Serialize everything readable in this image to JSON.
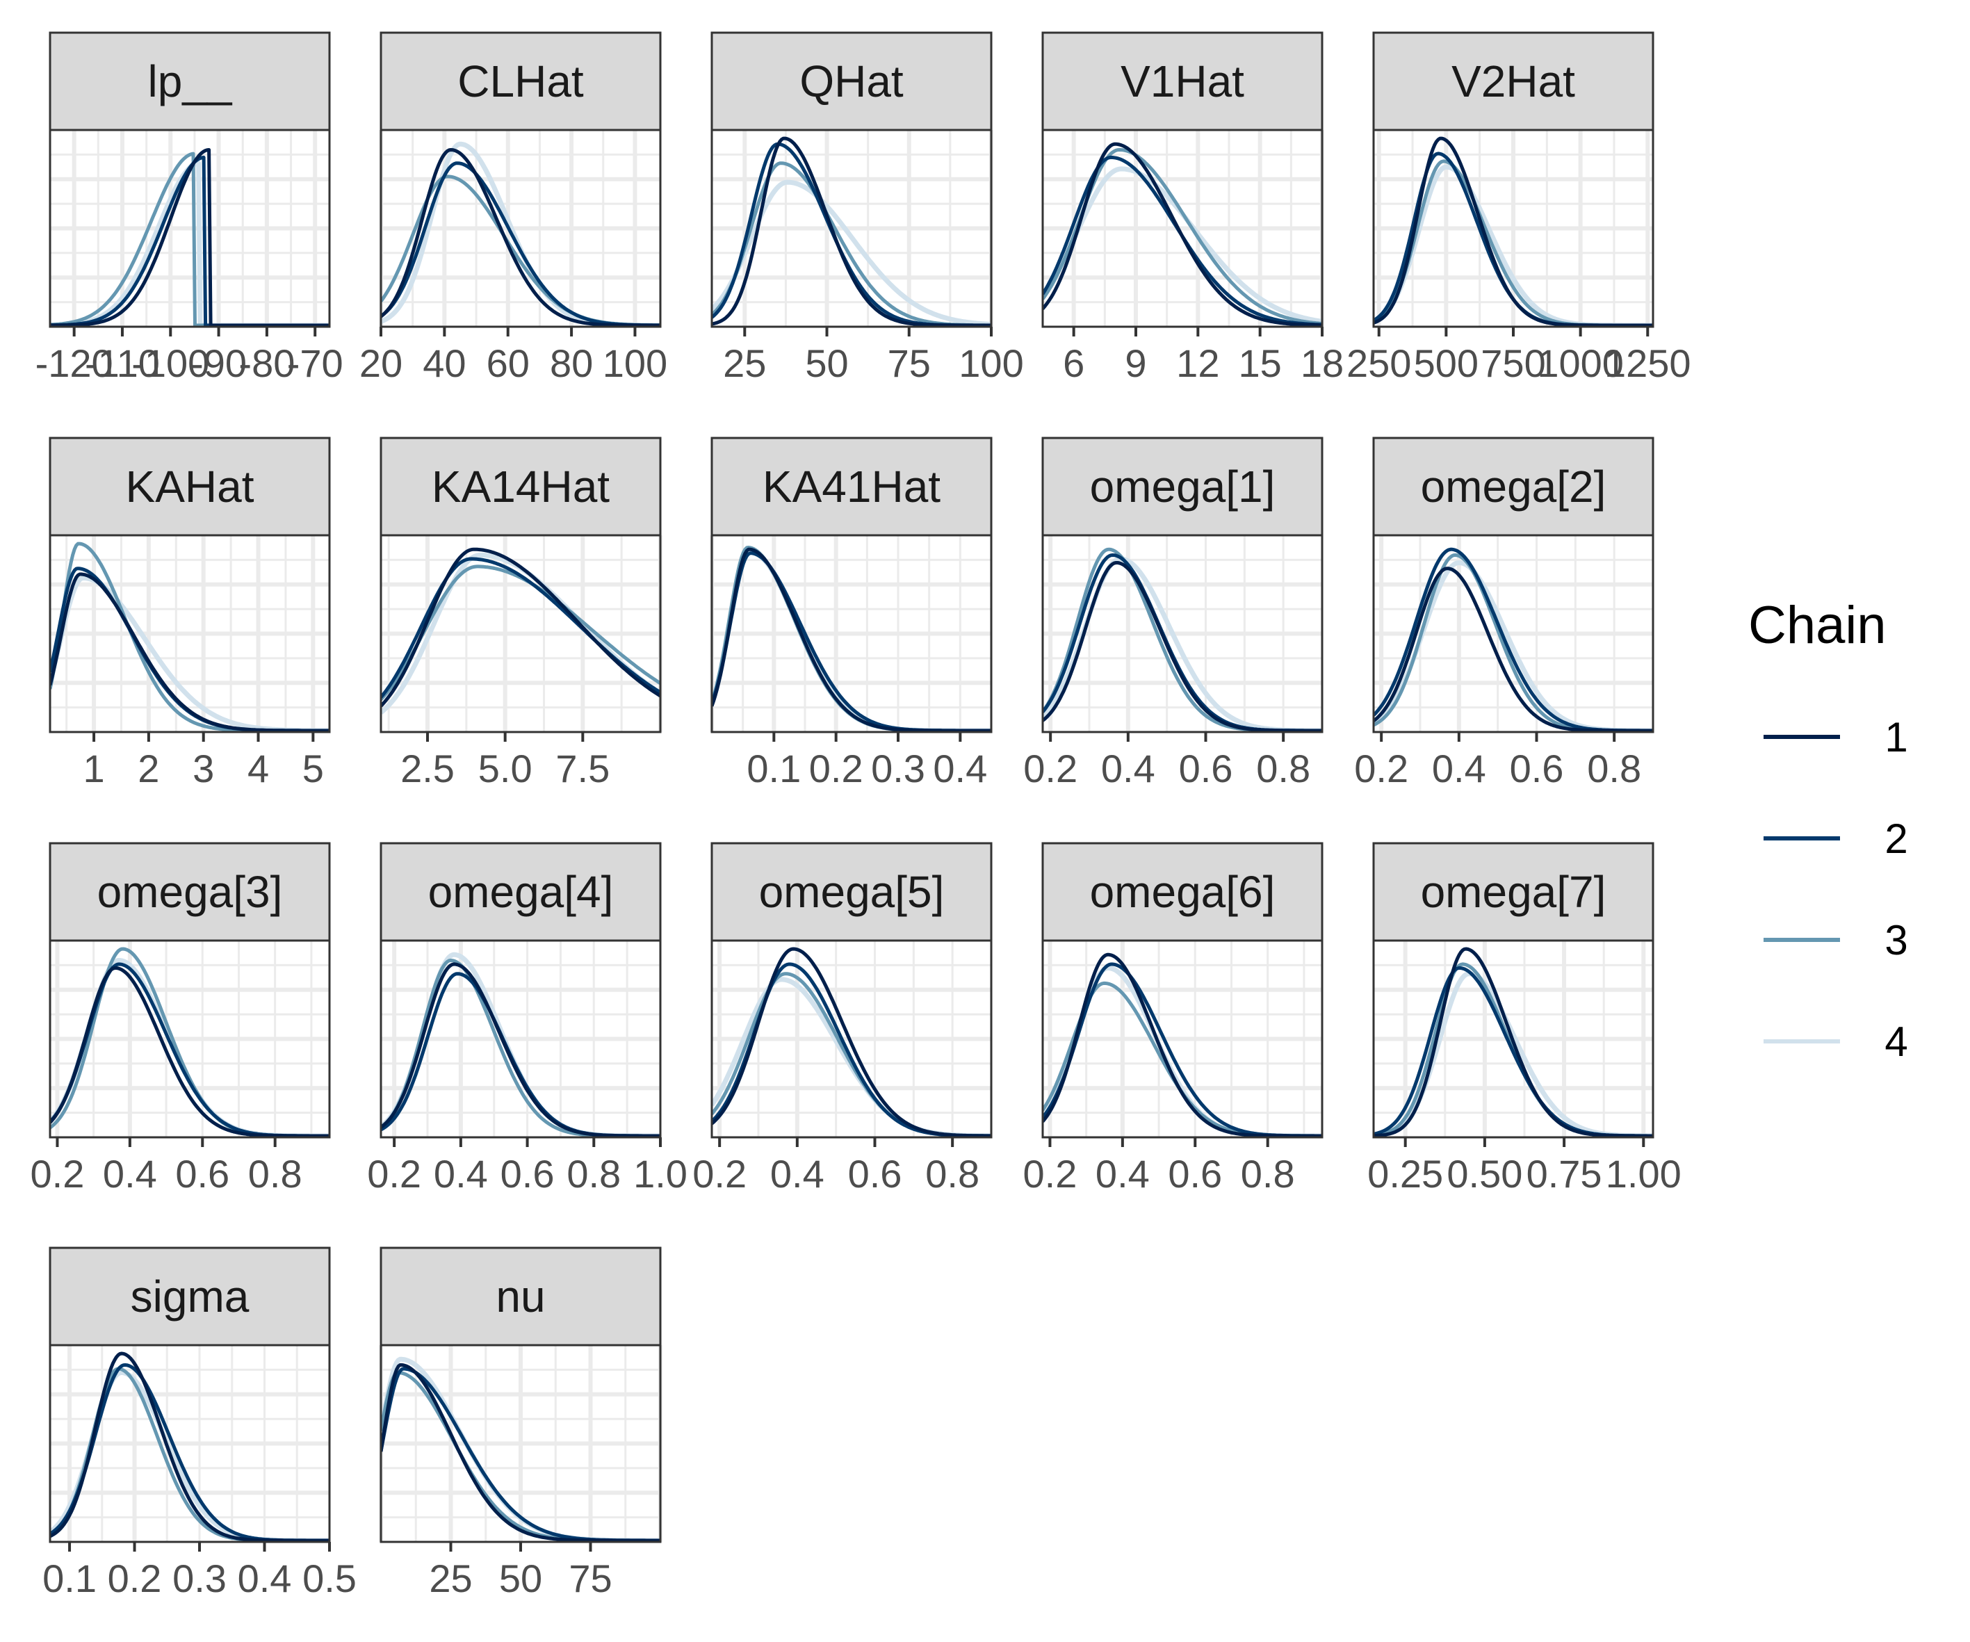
{
  "chart_data": {
    "type": "area",
    "legend": {
      "title": "Chain",
      "placement": "right"
    },
    "series": [
      {
        "name": "1",
        "color": "#011f4b"
      },
      {
        "name": "2",
        "color": "#03396c"
      },
      {
        "name": "3",
        "color": "#6497b1"
      },
      {
        "name": "4",
        "color": "#d1e1ec"
      }
    ],
    "grid": true,
    "panels": [
      {
        "title": "lp__",
        "xlim": [
          -125,
          -67
        ],
        "ticks": [
          -120,
          -110,
          -100,
          -90,
          -80,
          -70
        ],
        "tick_labels": [
          "-120",
          "-110",
          "-100",
          "-90",
          "-80",
          "-70"
        ],
        "peaks": [
          -92,
          -93,
          -95,
          -94
        ],
        "spreads": [
          8,
          8.5,
          9,
          8.5
        ],
        "skew": 0,
        "heights": [
          0.92,
          0.88,
          0.9,
          0.85
        ]
      },
      {
        "title": "CLHat",
        "xlim": [
          20,
          108
        ],
        "ticks": [
          20,
          40,
          60,
          80,
          100
        ],
        "tick_labels": [
          "20",
          "40",
          "60",
          "80",
          "100"
        ],
        "peaks": [
          42,
          44,
          41,
          45
        ],
        "spreads": [
          9,
          10,
          11,
          9
        ],
        "skew": 1.6,
        "heights": [
          0.92,
          0.85,
          0.78,
          0.95
        ]
      },
      {
        "title": "QHat",
        "xlim": [
          15,
          100
        ],
        "ticks": [
          25,
          50,
          75,
          100
        ],
        "tick_labels": [
          "25",
          "50",
          "75",
          "100"
        ],
        "peaks": [
          37,
          35,
          36,
          38
        ],
        "spreads": [
          7,
          8,
          9,
          11
        ],
        "skew": 1.8,
        "heights": [
          0.98,
          0.95,
          0.85,
          0.75
        ]
      },
      {
        "title": "V1Hat",
        "xlim": [
          4.5,
          18
        ],
        "ticks": [
          6,
          9,
          12,
          15,
          18
        ],
        "tick_labels": [
          "6",
          "9",
          "12",
          "15",
          "18"
        ],
        "peaks": [
          8,
          7.8,
          8.2,
          8.3
        ],
        "spreads": [
          1.6,
          1.8,
          1.9,
          2.1
        ],
        "skew": 1.7,
        "heights": [
          0.95,
          0.88,
          0.92,
          0.82
        ]
      },
      {
        "title": "V2Hat",
        "xlim": [
          230,
          1270
        ],
        "ticks": [
          250,
          500,
          750,
          1000,
          1250
        ],
        "tick_labels": [
          "250",
          "500",
          "750",
          "1000",
          "1250"
        ],
        "peaks": [
          480,
          470,
          490,
          500
        ],
        "spreads": [
          85,
          90,
          95,
          100
        ],
        "skew": 1.6,
        "heights": [
          0.98,
          0.9,
          0.86,
          0.83
        ]
      },
      {
        "title": "KAHat",
        "xlim": [
          0.2,
          5.3
        ],
        "ticks": [
          1,
          2,
          3,
          4,
          5
        ],
        "tick_labels": [
          "1",
          "2",
          "3",
          "4",
          "5"
        ],
        "peaks": [
          0.75,
          0.7,
          0.72,
          0.8
        ],
        "spreads": [
          0.35,
          0.35,
          0.3,
          0.4
        ],
        "skew": 2.8,
        "heights": [
          0.82,
          0.85,
          0.98,
          0.8
        ]
      },
      {
        "title": "KA14Hat",
        "xlim": [
          1.0,
          10.0
        ],
        "ticks": [
          2.5,
          5.0,
          7.5
        ],
        "tick_labels": [
          "2.5",
          "5.0",
          "7.5"
        ],
        "peaks": [
          4.0,
          3.9,
          4.1,
          4.2
        ],
        "spreads": [
          1.5,
          1.6,
          1.7,
          1.5
        ],
        "skew": 2.2,
        "heights": [
          0.95,
          0.9,
          0.86,
          0.92
        ]
      },
      {
        "title": "KA41Hat",
        "xlim": [
          0.0,
          0.45
        ],
        "ticks": [
          0.1,
          0.2,
          0.3,
          0.4
        ],
        "tick_labels": [
          "0.1",
          "0.2",
          "0.3",
          "0.4"
        ],
        "peaks": [
          0.06,
          0.062,
          0.058,
          0.06
        ],
        "spreads": [
          0.03,
          0.032,
          0.03,
          0.031
        ],
        "skew": 2.5,
        "heights": [
          0.95,
          0.93,
          0.96,
          0.94
        ]
      },
      {
        "title": "omega[1]",
        "xlim": [
          0.18,
          0.9
        ],
        "ticks": [
          0.2,
          0.4,
          0.6,
          0.8
        ],
        "tick_labels": [
          "0.2",
          "0.4",
          "0.6",
          "0.8"
        ],
        "peaks": [
          0.37,
          0.36,
          0.35,
          0.38
        ],
        "spreads": [
          0.08,
          0.085,
          0.08,
          0.09
        ],
        "skew": 1.4,
        "heights": [
          0.88,
          0.92,
          0.95,
          0.9
        ]
      },
      {
        "title": "omega[2]",
        "xlim": [
          0.18,
          0.9
        ],
        "ticks": [
          0.2,
          0.4,
          0.6,
          0.8
        ],
        "tick_labels": [
          "0.2",
          "0.4",
          "0.6",
          "0.8"
        ],
        "peaks": [
          0.37,
          0.38,
          0.39,
          0.4
        ],
        "spreads": [
          0.08,
          0.09,
          0.08,
          0.09
        ],
        "skew": 1.3,
        "heights": [
          0.85,
          0.95,
          0.92,
          0.88
        ]
      },
      {
        "title": "omega[3]",
        "xlim": [
          0.18,
          0.95
        ],
        "ticks": [
          0.2,
          0.4,
          0.6,
          0.8
        ],
        "tick_labels": [
          "0.2",
          "0.4",
          "0.6",
          "0.8"
        ],
        "peaks": [
          0.36,
          0.37,
          0.38,
          0.37
        ],
        "spreads": [
          0.08,
          0.085,
          0.08,
          0.085
        ],
        "skew": 1.5,
        "heights": [
          0.88,
          0.9,
          0.98,
          0.92
        ]
      },
      {
        "title": "omega[4]",
        "xlim": [
          0.16,
          1.0
        ],
        "ticks": [
          0.2,
          0.4,
          0.6,
          0.8,
          1.0
        ],
        "tick_labels": [
          "0.2",
          "0.4",
          "0.6",
          "0.8",
          "1.0"
        ],
        "peaks": [
          0.38,
          0.39,
          0.37,
          0.38
        ],
        "spreads": [
          0.09,
          0.09,
          0.085,
          0.09
        ],
        "skew": 1.5,
        "heights": [
          0.9,
          0.85,
          0.92,
          0.95
        ]
      },
      {
        "title": "omega[5]",
        "xlim": [
          0.18,
          0.9
        ],
        "ticks": [
          0.2,
          0.4,
          0.6,
          0.8
        ],
        "tick_labels": [
          "0.2",
          "0.4",
          "0.6",
          "0.8"
        ],
        "peaks": [
          0.39,
          0.38,
          0.37,
          0.36
        ],
        "spreads": [
          0.09,
          0.09,
          0.095,
          0.1
        ],
        "skew": 1.4,
        "heights": [
          0.98,
          0.9,
          0.85,
          0.82
        ]
      },
      {
        "title": "omega[6]",
        "xlim": [
          0.18,
          0.95
        ],
        "ticks": [
          0.2,
          0.4,
          0.6,
          0.8
        ],
        "tick_labels": [
          "0.2",
          "0.4",
          "0.6",
          "0.8"
        ],
        "peaks": [
          0.36,
          0.37,
          0.35,
          0.36
        ],
        "spreads": [
          0.08,
          0.09,
          0.09,
          0.085
        ],
        "skew": 1.5,
        "heights": [
          0.95,
          0.9,
          0.8,
          0.88
        ]
      },
      {
        "title": "omega[7]",
        "xlim": [
          0.15,
          1.03
        ],
        "ticks": [
          0.25,
          0.5,
          0.75,
          1.0
        ],
        "tick_labels": [
          "0.25",
          "0.50",
          "0.75",
          "1.00"
        ],
        "peaks": [
          0.44,
          0.42,
          0.43,
          0.45
        ],
        "spreads": [
          0.08,
          0.09,
          0.085,
          0.09
        ],
        "skew": 1.6,
        "heights": [
          0.98,
          0.88,
          0.9,
          0.85
        ]
      },
      {
        "title": "sigma",
        "xlim": [
          0.07,
          0.5
        ],
        "ticks": [
          0.1,
          0.2,
          0.3,
          0.4,
          0.5
        ],
        "tick_labels": [
          "0.1",
          "0.2",
          "0.3",
          "0.4",
          "0.5"
        ],
        "peaks": [
          0.18,
          0.185,
          0.175,
          0.18
        ],
        "spreads": [
          0.04,
          0.045,
          0.04,
          0.045
        ],
        "skew": 1.5,
        "heights": [
          0.98,
          0.92,
          0.9,
          0.88
        ]
      },
      {
        "title": "nu",
        "xlim": [
          0,
          100
        ],
        "ticks": [
          25,
          50,
          75
        ],
        "tick_labels": [
          "25",
          "50",
          "75"
        ],
        "peaks": [
          7,
          8,
          6,
          7
        ],
        "spreads": [
          6,
          7,
          6.5,
          7
        ],
        "skew": 3.0,
        "heights": [
          0.92,
          0.9,
          0.88,
          0.95
        ]
      }
    ]
  }
}
